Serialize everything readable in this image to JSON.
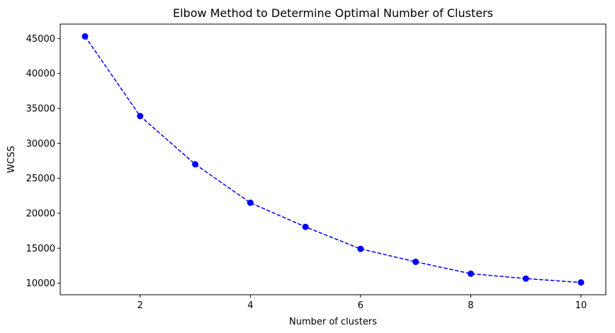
{
  "chart_data": {
    "type": "line",
    "title": "Elbow Method to Determine Optimal Number of Clusters",
    "xlabel": "Number of clusters",
    "ylabel": "WCSS",
    "x": [
      1,
      2,
      3,
      4,
      5,
      6,
      7,
      8,
      9,
      10
    ],
    "series": [
      {
        "values": [
          45300,
          33900,
          27000,
          21500,
          18050,
          14900,
          13050,
          11350,
          10650,
          10100
        ],
        "color": "#0000ff",
        "line_style": "dashed",
        "marker": "circle"
      }
    ],
    "xlim": [
      0.55,
      10.45
    ],
    "ylim": [
      8340,
      47060
    ],
    "xticks": [
      2,
      4,
      6,
      8,
      10
    ],
    "yticks": [
      10000,
      15000,
      20000,
      25000,
      30000,
      35000,
      40000,
      45000
    ],
    "grid": false
  }
}
